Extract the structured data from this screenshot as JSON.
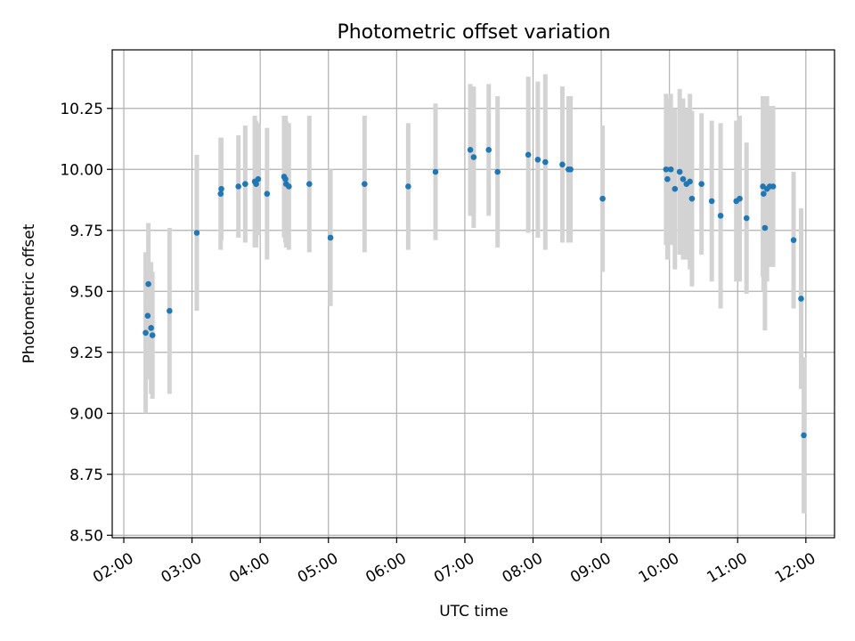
{
  "chart_data": {
    "type": "scatter",
    "title": "Photometric offset variation",
    "xlabel": "UTC time",
    "ylabel": "Photometric offset",
    "x_unit": "hours UTC",
    "xlim": [
      1.83,
      12.42
    ],
    "ylim": [
      8.49,
      10.49
    ],
    "xticks": [
      2,
      3,
      4,
      5,
      6,
      7,
      8,
      9,
      10,
      11,
      12
    ],
    "xtick_labels": [
      "02:00",
      "03:00",
      "04:00",
      "05:00",
      "06:00",
      "07:00",
      "08:00",
      "09:00",
      "10:00",
      "11:00",
      "12:00"
    ],
    "yticks": [
      8.5,
      8.75,
      9.0,
      9.25,
      9.5,
      9.75,
      10.0,
      10.25
    ],
    "ytick_labels": [
      "8.50",
      "8.75",
      "9.00",
      "9.25",
      "9.50",
      "9.75",
      "10.00",
      "10.25"
    ],
    "grid": true,
    "colors": {
      "point": "#1f77b4",
      "errorbar": "#d3d3d3"
    },
    "series": [
      {
        "x": [
          2.32,
          2.35,
          2.36,
          2.4,
          2.42,
          2.67,
          3.07,
          3.42,
          3.43,
          3.68,
          3.78,
          3.92,
          3.94,
          3.97,
          4.1,
          4.35,
          4.37,
          4.38,
          4.42,
          4.72,
          5.03,
          5.53,
          6.17,
          6.57,
          7.08,
          7.13,
          7.35,
          7.48,
          7.93,
          8.07,
          8.18,
          8.43,
          8.52,
          8.55,
          9.02,
          9.95,
          9.97,
          10.02,
          10.08,
          10.15,
          10.2,
          10.25,
          10.3,
          10.33,
          10.47,
          10.62,
          10.75,
          10.98,
          11.03,
          11.13,
          11.37,
          11.38,
          11.4,
          11.43,
          11.47,
          11.52,
          11.82,
          11.93,
          11.97
        ],
        "y": [
          9.33,
          9.4,
          9.53,
          9.35,
          9.32,
          9.42,
          9.74,
          9.9,
          9.92,
          9.93,
          9.94,
          9.95,
          9.94,
          9.96,
          9.9,
          9.97,
          9.96,
          9.94,
          9.93,
          9.94,
          9.72,
          9.94,
          9.93,
          9.99,
          10.08,
          10.05,
          10.08,
          9.99,
          10.06,
          10.04,
          10.03,
          10.02,
          10.0,
          10.0,
          9.88,
          10.0,
          9.96,
          10.0,
          9.92,
          9.99,
          9.96,
          9.94,
          9.95,
          9.88,
          9.94,
          9.87,
          9.81,
          9.87,
          9.88,
          9.8,
          9.93,
          9.9,
          9.76,
          9.92,
          9.93,
          9.93,
          9.71,
          9.47,
          8.91
        ],
        "yerr": [
          0.33,
          0.26,
          0.25,
          0.27,
          0.26,
          0.34,
          0.32,
          0.23,
          0.21,
          0.21,
          0.24,
          0.27,
          0.26,
          0.23,
          0.27,
          0.25,
          0.26,
          0.26,
          0.26,
          0.28,
          0.28,
          0.28,
          0.26,
          0.28,
          0.27,
          0.29,
          0.27,
          0.31,
          0.32,
          0.32,
          0.36,
          0.32,
          0.3,
          0.3,
          0.3,
          0.31,
          0.33,
          0.31,
          0.33,
          0.34,
          0.33,
          0.31,
          0.36,
          0.36,
          0.29,
          0.33,
          0.38,
          0.33,
          0.34,
          0.31,
          0.37,
          0.4,
          0.42,
          0.38,
          0.33,
          0.33,
          0.28,
          0.37,
          0.32
        ]
      }
    ]
  }
}
